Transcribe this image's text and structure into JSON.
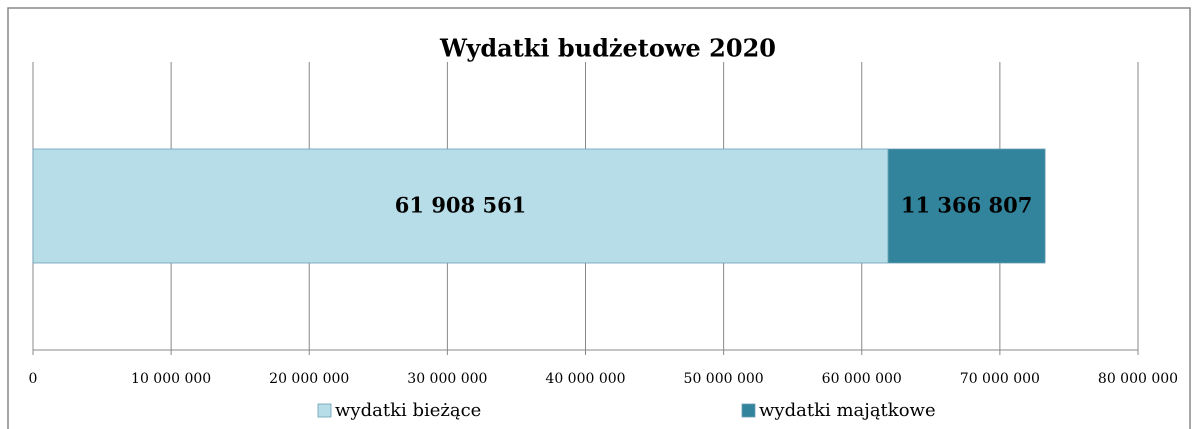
{
  "chart_data": {
    "type": "bar",
    "orientation": "horizontal",
    "stacked": true,
    "title": "Wydatki budżetowe 2020",
    "categories": [
      null
    ],
    "series": [
      {
        "name": "wydatki bieżące",
        "color": "#b7dde8",
        "values": [
          61908561
        ],
        "value_labels": [
          "61 908 561"
        ]
      },
      {
        "name": "wydatki majątkowe",
        "color": "#31849b",
        "values": [
          11366807
        ],
        "value_labels": [
          "11 366 807"
        ]
      }
    ],
    "xlim": [
      0,
      80000000
    ],
    "xticks": [
      0,
      {
        "value": 10000000,
        "label": "10 000 000"
      },
      {
        "value": 20000000,
        "label": "20 000 000"
      },
      {
        "value": 30000000,
        "label": "30 000 000"
      },
      {
        "value": 40000000,
        "label": "40 000 000"
      },
      {
        "value": 50000000,
        "label": "50 000 000"
      },
      {
        "value": 60000000,
        "label": "60 000 000"
      },
      {
        "value": 70000000,
        "label": "70 000 000"
      },
      {
        "value": 80000000,
        "label": "80 000 000"
      }
    ],
    "grid": true,
    "legend": "bottom"
  }
}
